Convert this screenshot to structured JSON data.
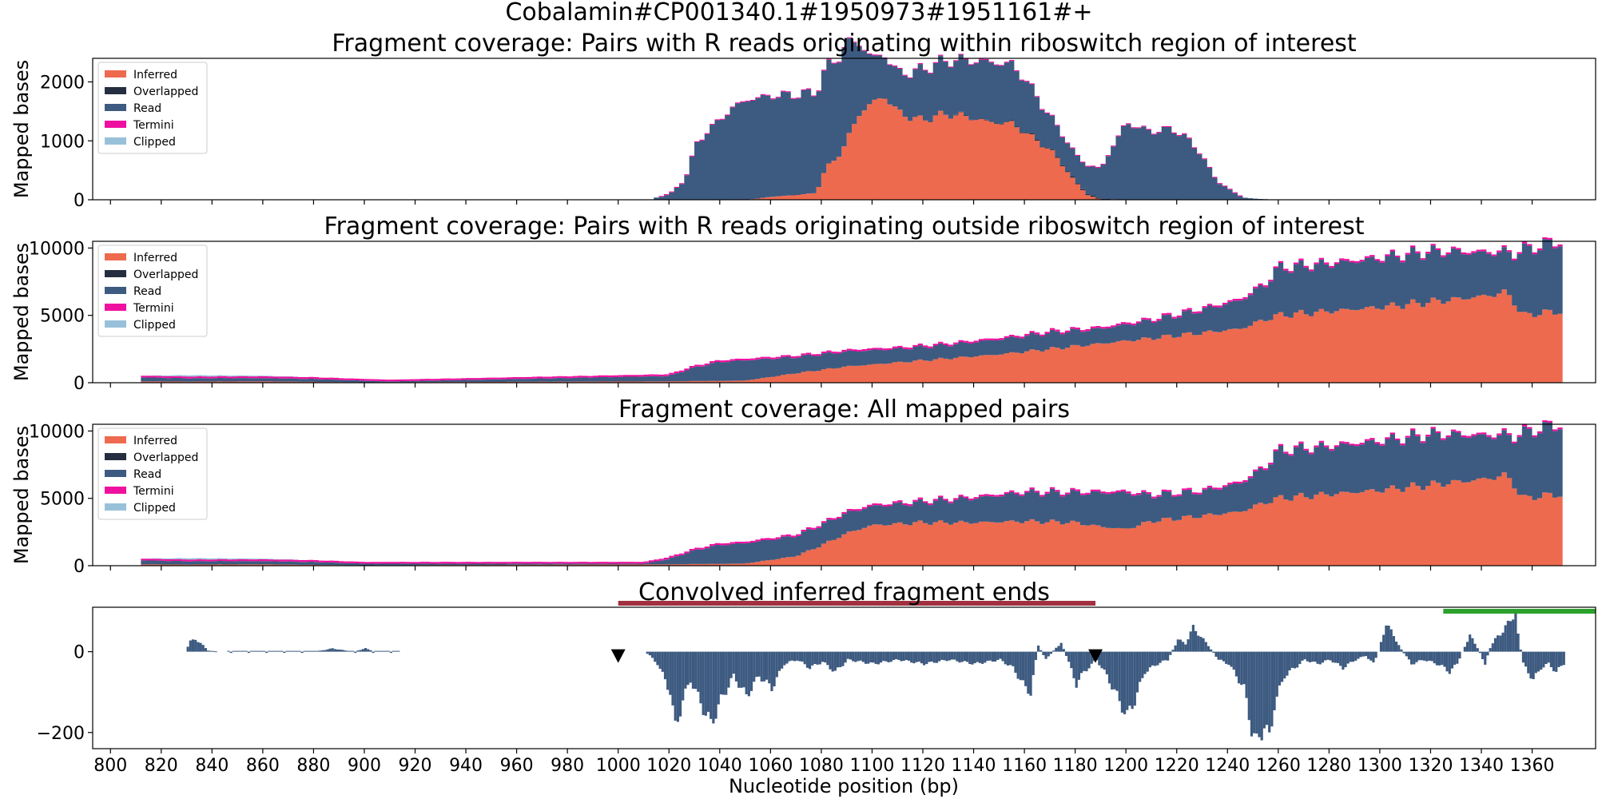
{
  "figure": {
    "suptitle": "Cobalamin#CP001340.1#1950973#1951161#+",
    "xlabel": "Nucleotide position (bp)"
  },
  "colors": {
    "inferred": "#ee6a4f",
    "overlapped": "#252e40",
    "read": "#3d5a80",
    "termini": "#ef10a0",
    "clipped": "#98c1d9",
    "bar": "#3d5a80",
    "riboswitch_bar": "#a1313e",
    "green_bar": "#2ca02c",
    "marker": "#000000"
  },
  "chart_data": [
    {
      "type": "area",
      "title": "Fragment coverage: Pairs with R reads originating within riboswitch region of interest",
      "ylabel": "Mapped bases",
      "xlim": [
        793,
        1385
      ],
      "ylim": [
        0,
        2400
      ],
      "yticks": [
        0,
        1000,
        2000
      ],
      "xticks": [
        800,
        820,
        840,
        860,
        880,
        900,
        920,
        940,
        960,
        980,
        1000,
        1020,
        1040,
        1060,
        1080,
        1100,
        1120,
        1140,
        1160,
        1180,
        1200,
        1220,
        1240,
        1260,
        1280,
        1300,
        1320,
        1340,
        1360
      ],
      "stacked": true,
      "legend": {
        "position": "upper-left",
        "entries": [
          "Inferred",
          "Overlapped",
          "Read",
          "Termini",
          "Clipped"
        ]
      },
      "series": [
        {
          "name": "Inferred",
          "x": [
            1050,
            1055,
            1060,
            1070,
            1075,
            1078,
            1082,
            1088,
            1092,
            1095,
            1100,
            1105,
            1110,
            1115,
            1120,
            1125,
            1130,
            1135,
            1140,
            1145,
            1150,
            1155,
            1160,
            1165,
            1170,
            1175,
            1180,
            1185,
            1190
          ],
          "y": [
            0,
            20,
            50,
            80,
            100,
            120,
            550,
            800,
            1200,
            1450,
            1650,
            1750,
            1500,
            1400,
            1350,
            1420,
            1450,
            1430,
            1380,
            1330,
            1300,
            1300,
            1150,
            1000,
            850,
            600,
            300,
            80,
            0
          ]
        },
        {
          "name": "Read",
          "x": [
            1013,
            1014,
            1018,
            1021,
            1025,
            1028,
            1030,
            1035,
            1040,
            1045,
            1050,
            1055,
            1060,
            1070,
            1080,
            1090,
            1100,
            1110,
            1120,
            1130,
            1140,
            1145,
            1150,
            1155,
            1160,
            1170,
            1180,
            1190,
            1200,
            1210,
            1218,
            1224,
            1230,
            1236,
            1240,
            1244,
            1246,
            1250,
            1255,
            1260
          ],
          "y": [
            0,
            30,
            60,
            120,
            280,
            500,
            900,
            1150,
            1350,
            1550,
            1680,
            1700,
            1710,
            1700,
            1700,
            1650,
            750,
            650,
            850,
            900,
            960,
            1000,
            1000,
            980,
            900,
            550,
            450,
            500,
            1300,
            1150,
            1200,
            1050,
            750,
            300,
            200,
            80,
            40,
            20,
            10,
            0
          ]
        },
        {
          "name": "Overlapped",
          "x": [
            1100,
            1150,
            1190,
            1200
          ],
          "y": [
            0,
            10,
            20,
            0
          ]
        },
        {
          "name": "Termini",
          "x": [
            1000,
            1260
          ],
          "y": [
            15,
            15
          ]
        },
        {
          "name": "Clipped",
          "x": [
            1000,
            1260
          ],
          "y": [
            0,
            0
          ]
        }
      ]
    },
    {
      "type": "area",
      "title": "Fragment coverage: Pairs with R reads originating outside riboswitch region of interest",
      "ylabel": "Mapped bases",
      "xlim": [
        793,
        1385
      ],
      "ylim": [
        0,
        10500
      ],
      "yticks": [
        0,
        5000,
        10000
      ],
      "xticks": [
        800,
        820,
        840,
        860,
        880,
        900,
        920,
        940,
        960,
        980,
        1000,
        1020,
        1040,
        1060,
        1080,
        1100,
        1120,
        1140,
        1160,
        1180,
        1200,
        1220,
        1240,
        1260,
        1280,
        1300,
        1320,
        1340,
        1360
      ],
      "stacked": true,
      "legend": {
        "position": "upper-left",
        "entries": [
          "Inferred",
          "Overlapped",
          "Read",
          "Termini",
          "Clipped"
        ]
      },
      "series": [
        {
          "name": "Inferred",
          "x": [
            812,
            830,
            860,
            880,
            900,
            1020,
            1050,
            1070,
            1090,
            1110,
            1130,
            1150,
            1170,
            1190,
            1210,
            1230,
            1245,
            1255,
            1260,
            1280,
            1300,
            1320,
            1330,
            1340,
            1350,
            1353,
            1356,
            1365,
            1372
          ],
          "y": [
            100,
            80,
            100,
            60,
            30,
            100,
            150,
            700,
            1200,
            1500,
            1800,
            2100,
            2500,
            2900,
            3300,
            3700,
            4000,
            4700,
            5000,
            5300,
            5600,
            6000,
            6200,
            6400,
            6700,
            6000,
            5000,
            5200,
            5300
          ]
        },
        {
          "name": "Read",
          "x": [
            812,
            830,
            850,
            880,
            900,
            910,
            1020,
            1030,
            1040,
            1050,
            1070,
            1090,
            1110,
            1130,
            1150,
            1170,
            1190,
            1210,
            1230,
            1245,
            1255,
            1260,
            1280,
            1300,
            1320,
            1330,
            1340,
            1350,
            1353,
            1356,
            1365,
            1372
          ],
          "y": [
            300,
            250,
            250,
            220,
            120,
            60,
            400,
            1000,
            1400,
            1500,
            1200,
            1100,
            1000,
            1000,
            1100,
            1200,
            1100,
            1300,
            1700,
            2100,
            2600,
            3500,
            3500,
            3600,
            3700,
            3500,
            3200,
            3000,
            3500,
            4800,
            5000,
            5200
          ]
        },
        {
          "name": "Overlapped",
          "x": [
            1020,
            1372
          ],
          "y": [
            10,
            10
          ]
        },
        {
          "name": "Termini",
          "x": [
            1020,
            1372
          ],
          "y": [
            30,
            30
          ]
        },
        {
          "name": "Clipped",
          "x": [
            812,
            830,
            840,
            860,
            880
          ],
          "y": [
            0,
            100,
            80,
            50,
            0
          ]
        }
      ]
    },
    {
      "type": "area",
      "title": "Fragment coverage: All mapped pairs",
      "ylabel": "Mapped bases",
      "xlim": [
        793,
        1385
      ],
      "ylim": [
        0,
        10500
      ],
      "yticks": [
        0,
        5000,
        10000
      ],
      "xticks": [
        800,
        820,
        840,
        860,
        880,
        900,
        920,
        940,
        960,
        980,
        1000,
        1020,
        1040,
        1060,
        1080,
        1100,
        1120,
        1140,
        1160,
        1180,
        1200,
        1220,
        1240,
        1260,
        1280,
        1300,
        1320,
        1340,
        1360
      ],
      "stacked": true,
      "legend": {
        "position": "upper-left",
        "entries": [
          "Inferred",
          "Overlapped",
          "Read",
          "Termini",
          "Clipped"
        ]
      },
      "series": [
        {
          "name": "Inferred",
          "x": [
            812,
            830,
            860,
            880,
            900,
            1020,
            1050,
            1070,
            1080,
            1090,
            1100,
            1120,
            1140,
            1160,
            1180,
            1190,
            1200,
            1210,
            1230,
            1245,
            1255,
            1260,
            1280,
            1300,
            1320,
            1330,
            1340,
            1350,
            1353,
            1356,
            1365,
            1372
          ],
          "y": [
            100,
            80,
            100,
            60,
            30,
            100,
            150,
            700,
            1500,
            2400,
            3000,
            3200,
            3200,
            3300,
            3200,
            2900,
            2700,
            3300,
            3700,
            4000,
            4700,
            5000,
            5300,
            5600,
            6000,
            6200,
            6400,
            6700,
            6000,
            5000,
            5200,
            5300
          ]
        },
        {
          "name": "Read",
          "x": [
            812,
            830,
            850,
            880,
            900,
            1010,
            1020,
            1030,
            1040,
            1050,
            1070,
            1080,
            1090,
            1100,
            1120,
            1140,
            1160,
            1180,
            1190,
            1200,
            1210,
            1230,
            1245,
            1255,
            1260,
            1280,
            1300,
            1320,
            1330,
            1340,
            1350,
            1353,
            1356,
            1365,
            1372
          ],
          "y": [
            300,
            250,
            250,
            220,
            120,
            60,
            400,
            1000,
            1400,
            1500,
            1500,
            1500,
            1500,
            1400,
            1500,
            1800,
            2100,
            2200,
            2500,
            2700,
            1900,
            1800,
            2100,
            2600,
            3500,
            3500,
            3600,
            3700,
            3500,
            3200,
            3000,
            3500,
            4800,
            5000,
            5200
          ]
        },
        {
          "name": "Overlapped",
          "x": [
            1020,
            1372
          ],
          "y": [
            10,
            10
          ]
        },
        {
          "name": "Termini",
          "x": [
            1020,
            1372
          ],
          "y": [
            30,
            30
          ]
        },
        {
          "name": "Clipped",
          "x": [
            812,
            830,
            840,
            860,
            880
          ],
          "y": [
            0,
            100,
            80,
            50,
            0
          ]
        }
      ]
    },
    {
      "type": "bar",
      "title": "Convolved inferred fragment ends",
      "xlabel": "Nucleotide position (bp)",
      "xlim": [
        793,
        1385
      ],
      "ylim": [
        -240,
        110
      ],
      "yticks": [
        -200,
        0
      ],
      "xticks": [
        800,
        820,
        840,
        860,
        880,
        900,
        920,
        940,
        960,
        980,
        1000,
        1020,
        1040,
        1060,
        1080,
        1100,
        1120,
        1140,
        1160,
        1180,
        1200,
        1220,
        1240,
        1260,
        1280,
        1300,
        1320,
        1340,
        1360
      ],
      "profile_points": [
        [
          829,
          0
        ],
        [
          831,
          25
        ],
        [
          833,
          32
        ],
        [
          836,
          15
        ],
        [
          838,
          3
        ],
        [
          842,
          0
        ],
        [
          860,
          0
        ],
        [
          880,
          0
        ],
        [
          887,
          8
        ],
        [
          895,
          0
        ],
        [
          900,
          8
        ],
        [
          904,
          0
        ],
        [
          1010,
          0
        ],
        [
          1012,
          -10
        ],
        [
          1015,
          -30
        ],
        [
          1018,
          -70
        ],
        [
          1020,
          -100
        ],
        [
          1022,
          -190
        ],
        [
          1025,
          -120
        ],
        [
          1028,
          -70
        ],
        [
          1033,
          -140
        ],
        [
          1036,
          -180
        ],
        [
          1040,
          -120
        ],
        [
          1045,
          -60
        ],
        [
          1050,
          -110
        ],
        [
          1055,
          -60
        ],
        [
          1060,
          -90
        ],
        [
          1065,
          -30
        ],
        [
          1070,
          -20
        ],
        [
          1075,
          -40
        ],
        [
          1080,
          -25
        ],
        [
          1085,
          -50
        ],
        [
          1090,
          -20
        ],
        [
          1100,
          -30
        ],
        [
          1110,
          -20
        ],
        [
          1120,
          -30
        ],
        [
          1130,
          -20
        ],
        [
          1140,
          -30
        ],
        [
          1150,
          -20
        ],
        [
          1155,
          -40
        ],
        [
          1160,
          -90
        ],
        [
          1162,
          -100
        ],
        [
          1165,
          15
        ],
        [
          1168,
          -20
        ],
        [
          1172,
          10
        ],
        [
          1174,
          22
        ],
        [
          1176,
          -10
        ],
        [
          1180,
          -80
        ],
        [
          1183,
          -50
        ],
        [
          1188,
          -20
        ],
        [
          1192,
          -60
        ],
        [
          1196,
          -110
        ],
        [
          1200,
          -160
        ],
        [
          1203,
          -120
        ],
        [
          1207,
          -50
        ],
        [
          1212,
          -30
        ],
        [
          1216,
          -20
        ],
        [
          1220,
          30
        ],
        [
          1223,
          20
        ],
        [
          1226,
          60
        ],
        [
          1228,
          45
        ],
        [
          1232,
          15
        ],
        [
          1236,
          -20
        ],
        [
          1240,
          -30
        ],
        [
          1246,
          -90
        ],
        [
          1249,
          -190
        ],
        [
          1251,
          -230
        ],
        [
          1254,
          -180
        ],
        [
          1256,
          -220
        ],
        [
          1258,
          -130
        ],
        [
          1262,
          -60
        ],
        [
          1266,
          -40
        ],
        [
          1270,
          -20
        ],
        [
          1275,
          -30
        ],
        [
          1280,
          -20
        ],
        [
          1285,
          -40
        ],
        [
          1290,
          -20
        ],
        [
          1294,
          -10
        ],
        [
          1297,
          -30
        ],
        [
          1299,
          0
        ],
        [
          1302,
          70
        ],
        [
          1305,
          40
        ],
        [
          1308,
          5
        ],
        [
          1312,
          -30
        ],
        [
          1317,
          -20
        ],
        [
          1322,
          -30
        ],
        [
          1325,
          -40
        ],
        [
          1327,
          -50
        ],
        [
          1330,
          -30
        ],
        [
          1332,
          0
        ],
        [
          1335,
          40
        ],
        [
          1338,
          10
        ],
        [
          1341,
          -30
        ],
        [
          1343,
          10
        ],
        [
          1346,
          40
        ],
        [
          1348,
          50
        ],
        [
          1351,
          80
        ],
        [
          1353,
          100
        ],
        [
          1354,
          40
        ],
        [
          1356,
          -30
        ],
        [
          1360,
          -70
        ],
        [
          1363,
          -40
        ],
        [
          1366,
          -30
        ],
        [
          1369,
          -50
        ],
        [
          1372,
          -30
        ]
      ],
      "markers": [
        {
          "x": 1000,
          "shape": "triangle-down"
        },
        {
          "x": 1188,
          "shape": "triangle-down"
        }
      ],
      "horizontal_segments": [
        {
          "x": [
            1000,
            1188
          ],
          "y": 120,
          "color": "riboswitch_bar"
        },
        {
          "x": [
            1325,
            1385
          ],
          "y": 100,
          "color": "green_bar"
        }
      ]
    }
  ]
}
